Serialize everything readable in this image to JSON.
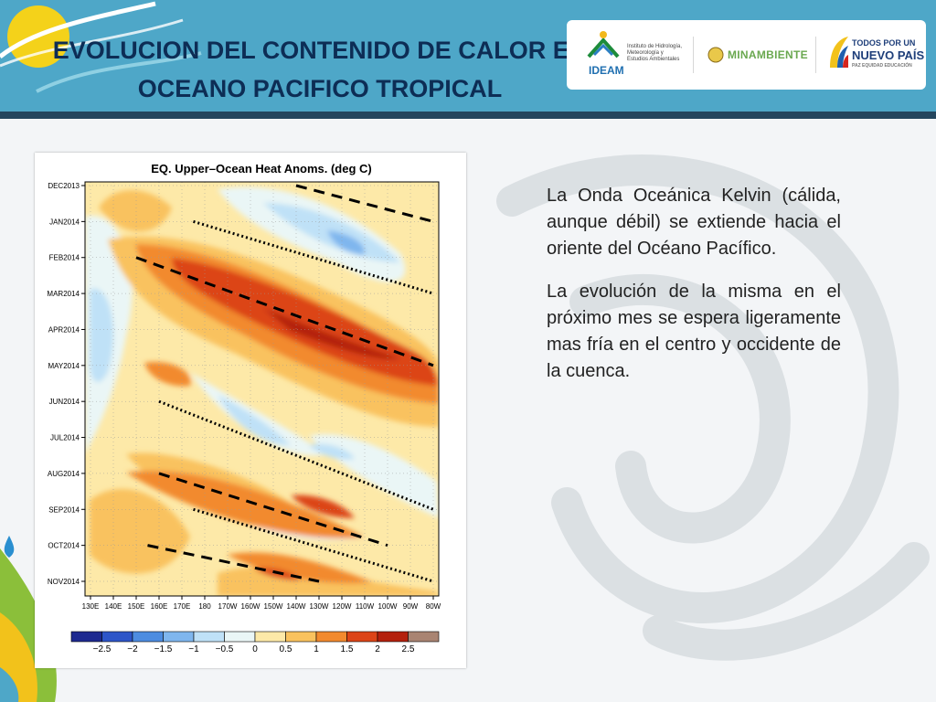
{
  "header": {
    "title_line1": "EVOLUCION DEL CONTENIDO DE CALOR EN",
    "title_line2": "OCEANO PACIFICO TROPICAL",
    "logos": {
      "ideam_name": "IDEAM",
      "ideam_sub1": "Instituto de Hidrología,",
      "ideam_sub2": "Meteorología y",
      "ideam_sub3": "Estudios Ambientales",
      "minambiente": "MINAMBIENTE",
      "gov_line1": "TODOS POR UN",
      "gov_line2": "NUEVO PAÍS",
      "gov_line3": "PAZ  EQUIDAD  EDUCACIÓN"
    }
  },
  "body": {
    "paragraph1": "La Onda Oceánica Kelvin (cálida, aunque débil) se extiende hacia el oriente del Océano Pacífico.",
    "paragraph2": "La evolución de la misma en el próximo mes se espera ligeramente mas fría en el centro y occidente de la cuenca."
  },
  "chart_data": {
    "type": "heatmap",
    "title": "EQ. Upper–Ocean Heat Anoms. (deg C)",
    "x_ticks": [
      "130E",
      "140E",
      "150E",
      "160E",
      "170E",
      "180",
      "170W",
      "160W",
      "150W",
      "140W",
      "130W",
      "120W",
      "110W",
      "100W",
      "90W",
      "80W"
    ],
    "y_ticks": [
      "DEC2013",
      "JAN2014",
      "FEB2014",
      "MAR2014",
      "APR2014",
      "MAY2014",
      "JUN2014",
      "JUL2014",
      "AUG2014",
      "SEP2014",
      "OCT2014",
      "NOV2014"
    ],
    "colorbar": {
      "labels": [
        "−2.5",
        "−2",
        "−1.5",
        "−1",
        "−0.5",
        "0",
        "0.5",
        "1",
        "1.5",
        "2",
        "2.5"
      ],
      "colors": [
        "#1e2a90",
        "#2d55c8",
        "#4d8ce0",
        "#7fb6ee",
        "#bfe1f7",
        "#eaf6f6",
        "#fde9a8",
        "#f9c25e",
        "#f28a2e",
        "#dc4417",
        "#b4200d",
        "#a98472"
      ]
    },
    "annotations": [
      {
        "style": "dotted",
        "x1": "175E",
        "y1": "JAN2014",
        "x2": "80W",
        "y2": "MAR2014"
      },
      {
        "style": "dashed",
        "x1": "150E",
        "y1": "FEB2014",
        "x2": "80W",
        "y2": "MAY2014"
      },
      {
        "style": "dashed",
        "x1": "140W",
        "y1": "DEC2013",
        "x2": "80W",
        "y2": "JAN2014"
      },
      {
        "style": "dotted",
        "x1": "160E",
        "y1": "JUN2014",
        "x2": "80W",
        "y2": "SEP2014"
      },
      {
        "style": "dashed",
        "x1": "160E",
        "y1": "AUG2014",
        "x2": "100W",
        "y2": "OCT2014"
      },
      {
        "style": "dotted",
        "x1": "175E",
        "y1": "SEP2014",
        "x2": "80W",
        "y2": "NOV2014"
      },
      {
        "style": "dashed",
        "x1": "155E",
        "y1": "OCT2014",
        "x2": "130W",
        "y2": "NOV2014"
      }
    ]
  }
}
